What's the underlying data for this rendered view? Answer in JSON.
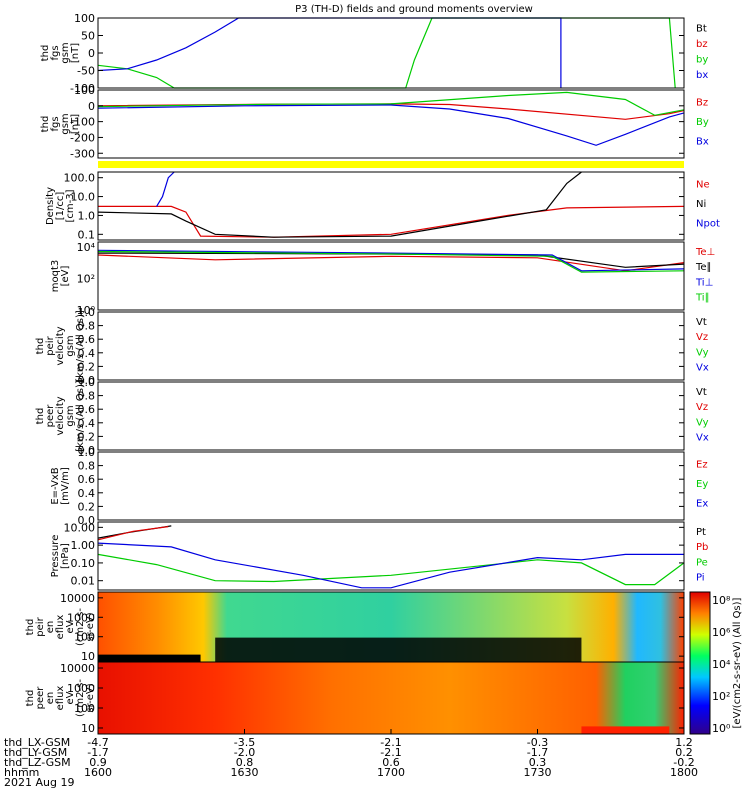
{
  "title": "P3 (TH-D) fields and ground moments overview",
  "colors": {
    "black": "#000000",
    "red": "#e00000",
    "green": "#00cc00",
    "blue": "#0000e0",
    "yellow": "#ffff00"
  },
  "chart_data": [
    {
      "id": "fgs-zoom",
      "type": "line",
      "ylabel_lines": [
        "thd",
        "fgs",
        "gsm",
        "[nT]"
      ],
      "ylim": [
        -100,
        100
      ],
      "yticks": [
        "100",
        "50",
        "0",
        "-50",
        "-100"
      ],
      "series": [
        {
          "name": "Bt",
          "color": "#000000",
          "values": []
        },
        {
          "name": "bz",
          "color": "#e00000",
          "values": []
        },
        {
          "name": "by",
          "color": "#00cc00",
          "values": [
            [
              1600,
              -35
            ],
            [
              1610,
              -45
            ],
            [
              1620,
              -70
            ],
            [
              1626,
              -100
            ],
            [
              1705,
              -100
            ],
            [
              1708,
              -20
            ],
            [
              1714,
              100
            ],
            [
              1795,
              100
            ],
            [
              1797,
              -100
            ]
          ]
        },
        {
          "name": "bx",
          "color": "#0000e0",
          "values": [
            [
              1600,
              -50
            ],
            [
              1610,
              -45
            ],
            [
              1620,
              -20
            ],
            [
              1630,
              15
            ],
            [
              1640,
              60
            ],
            [
              1648,
              100
            ],
            [
              1758,
              100
            ],
            [
              1758,
              -100
            ]
          ]
        }
      ]
    },
    {
      "id": "fgs",
      "type": "line",
      "ylabel_lines": [
        "thd",
        "fgs",
        "gsm",
        "[nT]"
      ],
      "ylim": [
        -330,
        100
      ],
      "yticks": [
        "100",
        "0",
        "-100",
        "-200",
        "-300"
      ],
      "series": [
        {
          "name": "Bz",
          "color": "#e00000",
          "values": [
            [
              1600,
              0
            ],
            [
              1660,
              10
            ],
            [
              1700,
              12
            ],
            [
              1720,
              8
            ],
            [
              1740,
              -20
            ],
            [
              1780,
              -85
            ],
            [
              1795,
              -50
            ],
            [
              1800,
              -30
            ]
          ]
        },
        {
          "name": "By",
          "color": "#00cc00",
          "values": [
            [
              1600,
              -5
            ],
            [
              1660,
              10
            ],
            [
              1700,
              12
            ],
            [
              1740,
              65
            ],
            [
              1760,
              85
            ],
            [
              1780,
              40
            ],
            [
              1790,
              -60
            ],
            [
              1800,
              -25
            ]
          ]
        },
        {
          "name": "Bx",
          "color": "#0000e0",
          "values": [
            [
              1600,
              -15
            ],
            [
              1650,
              0
            ],
            [
              1700,
              5
            ],
            [
              1720,
              -20
            ],
            [
              1740,
              -80
            ],
            [
              1760,
              -190
            ],
            [
              1770,
              -250
            ],
            [
              1780,
              -180
            ],
            [
              1795,
              -70
            ],
            [
              1800,
              -45
            ]
          ]
        }
      ]
    },
    {
      "id": "density",
      "type": "line",
      "ylabel_lines": [
        "Density",
        "[1/cc]",
        "[cm-3]"
      ],
      "ylim": [
        0.05,
        200
      ],
      "yscale": "log",
      "yticks": [
        "100.0",
        "10.0",
        "1.0",
        "0.1"
      ],
      "series": [
        {
          "name": "Ne",
          "color": "#e00000",
          "values": [
            [
              1600,
              3
            ],
            [
              1625,
              3
            ],
            [
              1630,
              1.5
            ],
            [
              1635,
              0.08
            ],
            [
              1660,
              0.07
            ],
            [
              1700,
              0.1
            ],
            [
              1740,
              1
            ],
            [
              1760,
              2.5
            ],
            [
              1800,
              3
            ]
          ]
        },
        {
          "name": "Ni",
          "color": "#000000",
          "values": [
            [
              1600,
              1.5
            ],
            [
              1625,
              1.2
            ],
            [
              1630,
              0.5
            ],
            [
              1640,
              0.1
            ],
            [
              1660,
              0.07
            ],
            [
              1700,
              0.08
            ],
            [
              1730,
              0.5
            ],
            [
              1753,
              2
            ],
            [
              1760,
              50
            ],
            [
              1765,
              200
            ]
          ]
        },
        {
          "name": "Npot",
          "color": "#0000e0",
          "values": [
            [
              1620,
              3
            ],
            [
              1622,
              10
            ],
            [
              1624,
              100
            ],
            [
              1626,
              200
            ]
          ]
        }
      ]
    },
    {
      "id": "temp",
      "type": "line",
      "ylabel_lines": [
        "moqt3",
        "[eV]"
      ],
      "ylim": [
        1,
        20000
      ],
      "yscale": "log",
      "series": [
        {
          "name": "Te⊥",
          "color": "#e00000",
          "values": [
            [
              1600,
              3000
            ],
            [
              1640,
              1500
            ],
            [
              1700,
              2500
            ],
            [
              1750,
              2000
            ],
            [
              1780,
              300
            ],
            [
              1800,
              1000
            ]
          ]
        },
        {
          "name": "Te∥",
          "color": "#000000",
          "values": [
            [
              1600,
              4000
            ],
            [
              1700,
              3500
            ],
            [
              1750,
              3000
            ],
            [
              1780,
              500
            ],
            [
              1800,
              800
            ]
          ]
        },
        {
          "name": "Ti⊥",
          "color": "#0000e0",
          "values": [
            [
              1600,
              6000
            ],
            [
              1700,
              4000
            ],
            [
              1755,
              3000
            ],
            [
              1765,
              300
            ],
            [
              1800,
              400
            ]
          ]
        },
        {
          "name": "Ti∥",
          "color": "#00cc00",
          "values": [
            [
              1600,
              5000
            ],
            [
              1700,
              3500
            ],
            [
              1755,
              2500
            ],
            [
              1765,
              250
            ],
            [
              1800,
              300
            ]
          ]
        }
      ]
    },
    {
      "id": "peir-vel",
      "type": "line",
      "ylabel_lines": [
        "thd",
        "peir",
        "velocity",
        "gsm",
        "[km/s (All Qs)]"
      ],
      "ylim": [
        0,
        1
      ],
      "yticks": [
        "1.0",
        "0.8",
        "0.6",
        "0.4",
        "0.2",
        "0.0"
      ],
      "series": [
        {
          "name": "Vt",
          "color": "#000000",
          "values": []
        },
        {
          "name": "Vz",
          "color": "#e00000",
          "values": []
        },
        {
          "name": "Vy",
          "color": "#00cc00",
          "values": []
        },
        {
          "name": "Vx",
          "color": "#0000e0",
          "values": []
        }
      ]
    },
    {
      "id": "peer-vel",
      "type": "line",
      "ylabel_lines": [
        "thd",
        "peer",
        "velocity",
        "gsm",
        "[km/s (All Qs)]"
      ],
      "ylim": [
        0,
        1
      ],
      "yticks": [
        "1.0",
        "0.8",
        "0.6",
        "0.4",
        "0.2",
        "0.0"
      ],
      "series": [
        {
          "name": "Vt",
          "color": "#000000",
          "values": []
        },
        {
          "name": "Vz",
          "color": "#e00000",
          "values": []
        },
        {
          "name": "Vy",
          "color": "#00cc00",
          "values": []
        },
        {
          "name": "Vx",
          "color": "#0000e0",
          "values": []
        }
      ]
    },
    {
      "id": "efield",
      "type": "line",
      "ylabel_lines": [
        "E=-VxB",
        "[mV/m]"
      ],
      "ylim": [
        0,
        1
      ],
      "yticks": [
        "1.0",
        "0.8",
        "0.6",
        "0.4",
        "0.2",
        "0.0"
      ],
      "series": [
        {
          "name": "Ez",
          "color": "#e00000",
          "values": []
        },
        {
          "name": "Ey",
          "color": "#00cc00",
          "values": []
        },
        {
          "name": "Ex",
          "color": "#0000e0",
          "values": []
        }
      ]
    },
    {
      "id": "pressure",
      "type": "line",
      "ylabel_lines": [
        "Pressure",
        "[nPa]"
      ],
      "ylim": [
        0.003,
        20
      ],
      "yscale": "log",
      "yticks": [
        "10.00",
        "1.00",
        "0.10",
        "0.01"
      ],
      "series": [
        {
          "name": "Pt",
          "color": "#000000",
          "values": [
            [
              1600,
              2.5
            ],
            [
              1610,
              5
            ],
            [
              1620,
              9
            ],
            [
              1625,
              12
            ]
          ]
        },
        {
          "name": "Pb",
          "color": "#e00000",
          "values": [
            [
              1600,
              2
            ],
            [
              1612,
              6
            ],
            [
              1624,
              11
            ]
          ]
        },
        {
          "name": "Pe",
          "color": "#00cc00",
          "values": [
            [
              1600,
              0.3
            ],
            [
              1620,
              0.08
            ],
            [
              1640,
              0.01
            ],
            [
              1660,
              0.009
            ],
            [
              1700,
              0.02
            ],
            [
              1750,
              0.15
            ],
            [
              1765,
              0.1
            ],
            [
              1780,
              0.006
            ],
            [
              1790,
              0.006
            ],
            [
              1800,
              0.1
            ]
          ]
        },
        {
          "name": "Pi",
          "color": "#0000e0",
          "values": [
            [
              1600,
              1.3
            ],
            [
              1625,
              0.8
            ],
            [
              1640,
              0.15
            ],
            [
              1670,
              0.02
            ],
            [
              1690,
              0.004
            ],
            [
              1700,
              0.004
            ],
            [
              1720,
              0.03
            ],
            [
              1750,
              0.2
            ],
            [
              1765,
              0.15
            ],
            [
              1780,
              0.3
            ],
            [
              1800,
              0.3
            ]
          ]
        }
      ]
    },
    {
      "id": "peir-eflux",
      "type": "heatmap",
      "ylabel_lines": [
        "thd",
        "peir",
        "en",
        "eflux",
        "eV",
        "(cm2-s-",
        "sr-eV)"
      ],
      "yscale": "log",
      "ylim": [
        5,
        20000
      ],
      "yticks": [
        "10000",
        "1000",
        "100",
        "10"
      ]
    },
    {
      "id": "peer-eflux",
      "type": "heatmap",
      "ylabel_lines": [
        "thd",
        "peer",
        "en",
        "eflux",
        "eV",
        "(cm2-s-",
        "sr-eV)"
      ],
      "yscale": "log",
      "ylim": [
        5,
        20000
      ],
      "yticks": [
        "10000",
        "1000",
        "100",
        "10"
      ]
    }
  ],
  "colorbar": {
    "label": "[eV/(cm2-s-sr-eV) (All Qs)]",
    "ticks": [
      "10⁸",
      "10⁶",
      "10⁴",
      "10²",
      "10⁰"
    ]
  },
  "xaxis": {
    "row_labels": [
      "thd_LX-GSM",
      "thd_LY-GSM",
      "thd_LZ-GSM",
      "hhmm",
      "2021 Aug 19"
    ],
    "columns": [
      [
        "-4.7",
        "-1.7",
        "0.9",
        "1600"
      ],
      [
        "-3.5",
        "-2.0",
        "0.8",
        "1630"
      ],
      [
        "-2.1",
        "-2.1",
        "0.6",
        "1700"
      ],
      [
        "-0.3",
        "-1.7",
        "0.3",
        "1730"
      ],
      [
        "1.2",
        "0.2",
        "-0.2",
        "1800"
      ]
    ]
  }
}
